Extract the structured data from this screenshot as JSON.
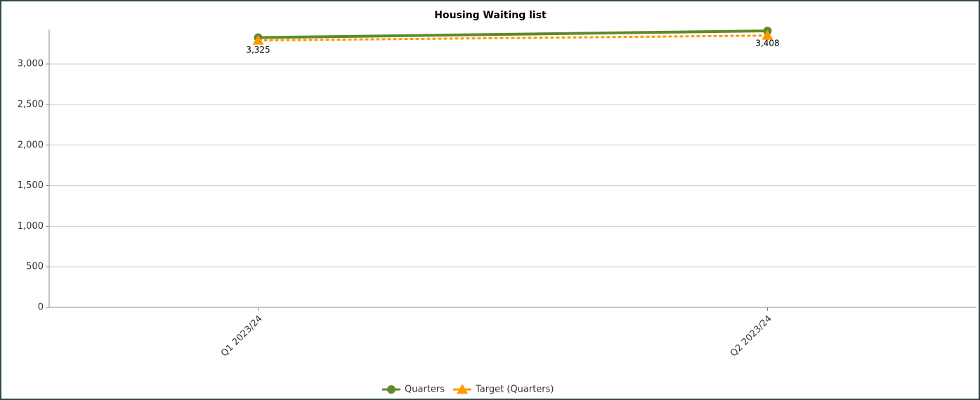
{
  "chart_data": {
    "type": "line",
    "title": "Housing Waiting list",
    "categories": [
      "Q1 2023/24",
      "Q2 2023/24"
    ],
    "series": [
      {
        "name": "Quarters",
        "color": "#5e8a2a",
        "values": [
          3325,
          3408
        ],
        "value_labels": [
          "3,325",
          "3,408"
        ]
      },
      {
        "name": "Target (Quarters)",
        "color": "#ff9900",
        "values": [
          3290,
          3350
        ]
      }
    ],
    "ylim": [
      0,
      3425
    ],
    "yticks": [
      0,
      500,
      {
        "value": 1000,
        "label": "1,000"
      },
      {
        "value": 1500,
        "label": "1,500"
      },
      {
        "value": 2000,
        "label": "2,000"
      },
      {
        "value": 2500,
        "label": "2,500"
      },
      {
        "value": 3000,
        "label": "3,000"
      }
    ],
    "grid": true
  }
}
